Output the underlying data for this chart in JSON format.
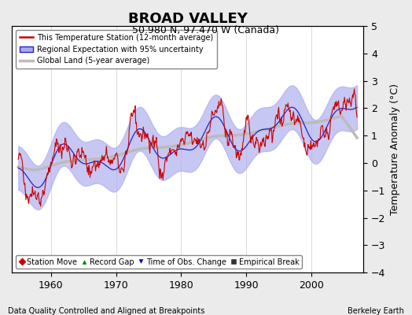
{
  "title": "BROAD VALLEY",
  "subtitle": "50.980 N, 97.470 W (Canada)",
  "xlabel_bottom": "Data Quality Controlled and Aligned at Breakpoints",
  "xlabel_right": "Berkeley Earth",
  "ylabel": "Temperature Anomaly (°C)",
  "ylim": [
    -4,
    5
  ],
  "yticks": [
    -4,
    -3,
    -2,
    -1,
    0,
    1,
    2,
    3,
    4,
    5
  ],
  "xlim": [
    1954,
    2008
  ],
  "xticks": [
    1960,
    1970,
    1980,
    1990,
    2000
  ],
  "year_start": 1955,
  "year_end": 2007,
  "background_color": "#ebebeb",
  "plot_bg_color": "#ffffff",
  "grid_color": "#cccccc",
  "station_color": "#cc0000",
  "regional_color": "#2222cc",
  "regional_fill_color": "#aaaaee",
  "global_color": "#bbbbbb",
  "legend_entries": [
    "This Temperature Station (12-month average)",
    "Regional Expectation with 95% uncertainty",
    "Global Land (5-year average)"
  ],
  "bottom_legend": [
    {
      "label": "Station Move",
      "marker": "D",
      "color": "#cc0000"
    },
    {
      "label": "Record Gap",
      "marker": "^",
      "color": "#008800"
    },
    {
      "label": "Time of Obs. Change",
      "marker": "v",
      "color": "#0000cc"
    },
    {
      "label": "Empirical Break",
      "marker": "s",
      "color": "#333333"
    }
  ],
  "seed": 42
}
